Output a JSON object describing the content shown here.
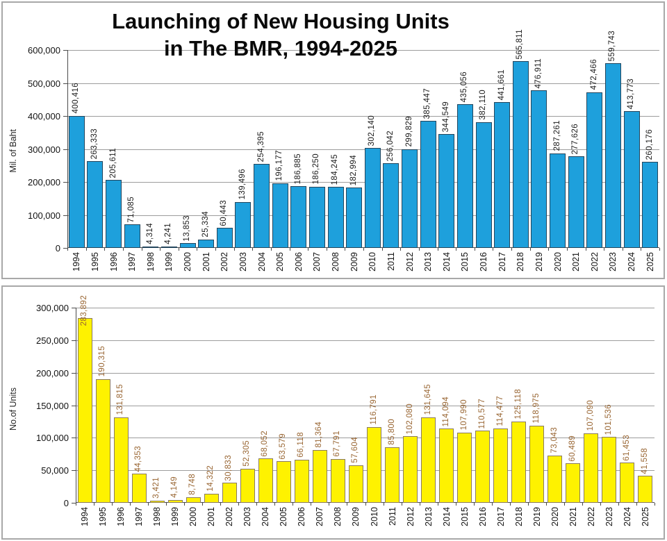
{
  "chart_data": [
    {
      "type": "bar",
      "title": "Launching of New Housing Units in The BMR, 1994-2025",
      "title_lines": [
        "Launching of New Housing Units",
        "in The BMR, 1994-2025"
      ],
      "xlabel": "",
      "ylabel": "Mil. of Baht",
      "ylim": [
        0,
        600000
      ],
      "ytick_step": 100000,
      "grid": true,
      "legend": "none",
      "bar_color": "#1EA0DC",
      "bar_border": "#23455c",
      "label_color": "#1a1a1a",
      "categories": [
        "1994",
        "1995",
        "1996",
        "1997",
        "1998",
        "1999",
        "2000",
        "2001",
        "2002",
        "2003",
        "2004",
        "2005",
        "2006",
        "2007",
        "2008",
        "2009",
        "2010",
        "2011",
        "2012",
        "2013",
        "2014",
        "2015",
        "2016",
        "2017",
        "2018",
        "2019",
        "2020",
        "2021",
        "2022",
        "2023",
        "2024",
        "2025"
      ],
      "values": [
        400416,
        263333,
        205611,
        71085,
        4314,
        4241,
        13853,
        25334,
        60443,
        139496,
        254395,
        196177,
        186885,
        186250,
        184245,
        182994,
        302140,
        256042,
        299829,
        385447,
        344549,
        435056,
        382110,
        441661,
        565811,
        476911,
        287261,
        277626,
        472466,
        559743,
        413773,
        260176
      ],
      "value_labels": [
        "400,416",
        "263,333",
        "205,611",
        "71,085",
        "4,314",
        "4,241",
        "13,853",
        "25,334",
        "60,443",
        "139,496",
        "254,395",
        "196,177",
        "186,885",
        "186,250",
        "184,245",
        "182,994",
        "302,140",
        "256,042",
        "299,829",
        "385,447",
        "344,549",
        "435,056",
        "382,110",
        "441,661",
        "565,811",
        "476,911",
        "287,261",
        "277,626",
        "472,466",
        "559,743",
        "413,773",
        "260,176"
      ]
    },
    {
      "type": "bar",
      "title": "",
      "title_lines": [],
      "xlabel": "",
      "ylabel": "No.of Units",
      "ylim": [
        0,
        300000
      ],
      "ytick_step": 50000,
      "grid": true,
      "legend": "none",
      "bar_color": "#FEF200",
      "bar_border": "#8a7a60",
      "label_color": "#996633",
      "categories": [
        "1994",
        "1995",
        "1996",
        "1997",
        "1998",
        "1999",
        "2000",
        "2001",
        "2002",
        "2003",
        "2004",
        "2005",
        "2006",
        "2007",
        "2008",
        "2009",
        "2010",
        "2011",
        "2012",
        "2013",
        "2014",
        "2015",
        "2016",
        "2017",
        "2018",
        "2019",
        "2020",
        "2021",
        "2022",
        "2023",
        "2024",
        "2025"
      ],
      "values": [
        283892,
        190315,
        131815,
        44353,
        3421,
        4149,
        8748,
        14322,
        30833,
        52305,
        68052,
        63579,
        66118,
        81364,
        67791,
        57604,
        116791,
        85800,
        102080,
        131645,
        114094,
        107990,
        110577,
        114477,
        125118,
        118975,
        73043,
        60489,
        107090,
        101536,
        61453,
        41558
      ],
      "value_labels": [
        "283,892",
        "190,315",
        "131,815",
        "44,353",
        "3,421",
        "4,149",
        "8,748",
        "14,322",
        "30,833",
        "52,305",
        "68,052",
        "63,579",
        "66,118",
        "81,364",
        "67,791",
        "57,604",
        "116,791",
        "85,800",
        "102,080",
        "131,645",
        "114,094",
        "107,990",
        "110,577",
        "114,477",
        "125,118",
        "118,975",
        "73,043",
        "60,489",
        "107,090",
        "101,536",
        "61,453",
        "41,558"
      ]
    }
  ]
}
